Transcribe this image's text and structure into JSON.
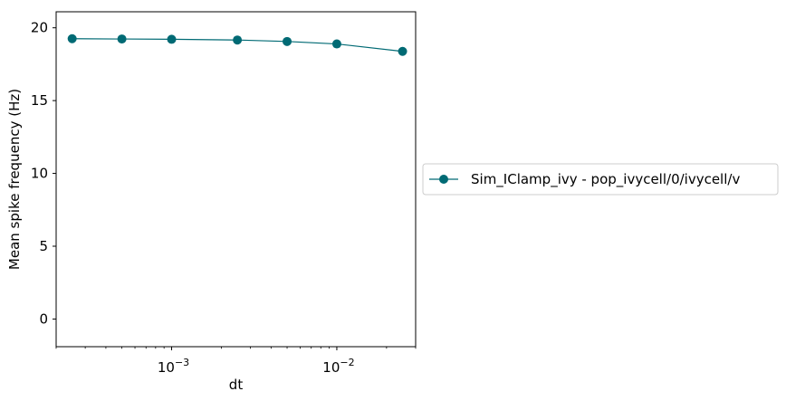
{
  "chart_data": {
    "type": "line",
    "xlabel": "dt",
    "ylabel": "Mean spike frequency (Hz)",
    "xscale": "log",
    "xlim": [
      0.0002,
      0.03
    ],
    "ylim": [
      -1.9,
      21.1
    ],
    "yticks": [
      0,
      5,
      10,
      15,
      20
    ],
    "xticks_major": [
      0.001,
      0.01
    ],
    "xtick_labels": {
      "base": "10",
      "exponents": [
        "−3",
        "−2"
      ]
    },
    "grid": false,
    "legend_position": "right-outside",
    "series": [
      {
        "name": "Sim_IClamp_ivy - pop_ivycell/0/ivycell/v",
        "color": "#006a74",
        "marker": "circle",
        "x": [
          0.00025,
          0.0005,
          0.001,
          0.0025,
          0.005,
          0.01,
          0.025
        ],
        "y": [
          19.25,
          19.23,
          19.21,
          19.16,
          19.06,
          18.89,
          18.38
        ]
      }
    ]
  }
}
